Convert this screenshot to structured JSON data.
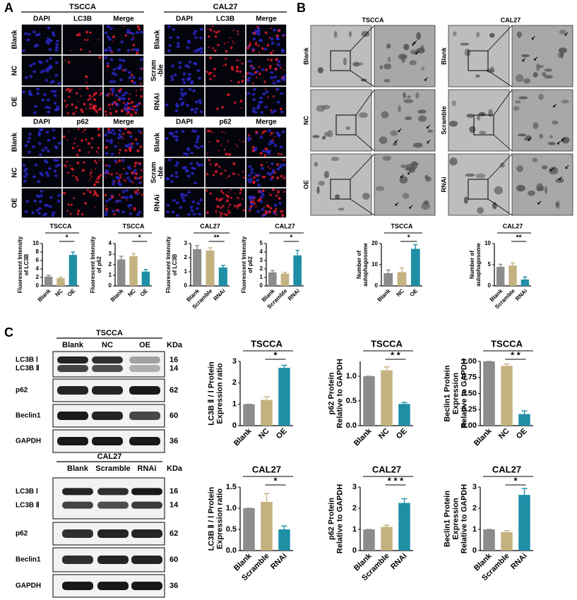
{
  "panel_labels": [
    "A",
    "B",
    "C"
  ],
  "fluorescence": [
    {
      "cell_line": "TSCCA",
      "columns": [
        "DAPI",
        "LC3B",
        "Merge"
      ],
      "rows": [
        "Blank",
        "NC",
        "OE"
      ]
    },
    {
      "columns": [
        "DAPI",
        "p62",
        "Merge"
      ],
      "rows": [
        "Blank",
        "NC",
        "OE"
      ]
    },
    {
      "cell_line": "CAL27",
      "columns": [
        "DAPI",
        "LC3B",
        "Merge"
      ],
      "rows": [
        "Blank",
        [
          "Scram",
          "-ble"
        ],
        "RNAi"
      ]
    },
    {
      "columns": [
        "DAPI",
        "p62",
        "Merge"
      ],
      "rows": [
        "Blank",
        [
          "Scram",
          "-ble"
        ],
        "RNAi"
      ]
    }
  ],
  "tem": [
    {
      "cell_line": "TSCCA",
      "rows": [
        "Blank",
        "NC",
        "OE"
      ]
    },
    {
      "cell_line": "CAL27",
      "rows": [
        "Blank",
        "Scramble",
        "RNAi"
      ]
    }
  ],
  "blots": [
    {
      "cell_line": "TSCCA",
      "lanes": [
        "Blank",
        "NC",
        "OE"
      ],
      "unit": "KDa",
      "strips": [
        {
          "labels": [
            "LC3B Ⅰ",
            "LC3B Ⅱ"
          ],
          "kda": [
            16,
            14
          ]
        },
        {
          "labels": [
            "p62"
          ],
          "kda": [
            62
          ]
        },
        {
          "labels": [
            "Beclin1"
          ],
          "kda": [
            60
          ]
        },
        {
          "labels": [
            "GAPDH"
          ],
          "kda": [
            36
          ]
        }
      ]
    },
    {
      "cell_line": "CAL27",
      "lanes": [
        "Blank",
        "Scramble",
        "RNAi"
      ],
      "unit": "KDa",
      "strips": [
        {
          "labels": [
            "LC3B Ⅰ",
            "LC3B Ⅱ"
          ],
          "kda": [
            16,
            14
          ]
        },
        {
          "labels": [
            "p62"
          ],
          "kda": [
            62
          ]
        },
        {
          "labels": [
            "Beclin1"
          ],
          "kda": [
            60
          ]
        },
        {
          "labels": [
            "GAPDH"
          ],
          "kda": [
            36
          ]
        }
      ]
    }
  ],
  "chart_data": [
    {
      "type": "bar",
      "title": "TSCCA",
      "y_label": [
        "Fluorescent Intensity",
        "of LC3B"
      ],
      "categories": [
        "Blank",
        "NC",
        "OE"
      ],
      "values": [
        2.2,
        1.8,
        7.3
      ],
      "errors": [
        0.3,
        0.2,
        0.7
      ],
      "colors": [
        "#8c8c8c",
        "#c4b280",
        "#1f8fa6"
      ],
      "ylim": [
        0,
        10
      ],
      "yticks": [
        0,
        2,
        4,
        6,
        8,
        10
      ],
      "significance": "*"
    },
    {
      "type": "bar",
      "title": "TSCCA",
      "y_label": [
        "Fluorescent Intensity",
        "of p62"
      ],
      "categories": [
        "Blank",
        "NC",
        "OE"
      ],
      "values": [
        2.5,
        2.8,
        1.35
      ],
      "errors": [
        0.3,
        0.25,
        0.2
      ],
      "colors": [
        "#8c8c8c",
        "#c4b280",
        "#1f8fa6"
      ],
      "ylim": [
        0,
        4
      ],
      "yticks": [
        0,
        1,
        2,
        3,
        4
      ],
      "significance": "*"
    },
    {
      "type": "bar",
      "title": "CAL27",
      "y_label": [
        "Fluorescent Intensity",
        "of LC3B"
      ],
      "categories": [
        "Blank",
        "Scramble",
        "RNAi"
      ],
      "values": [
        2.6,
        2.5,
        1.3
      ],
      "errors": [
        0.25,
        0.2,
        0.15
      ],
      "colors": [
        "#8c8c8c",
        "#c4b280",
        "#1f8fa6"
      ],
      "ylim": [
        0,
        3
      ],
      "yticks": [
        0,
        1,
        2,
        3
      ],
      "significance": "**"
    },
    {
      "type": "bar",
      "title": "CAL27",
      "y_label": [
        "Fluorescent Intensity",
        "of p62"
      ],
      "categories": [
        "Blank",
        "Scramble",
        "RNAi"
      ],
      "values": [
        1.6,
        1.45,
        3.6
      ],
      "errors": [
        0.2,
        0.15,
        0.6
      ],
      "colors": [
        "#8c8c8c",
        "#c4b280",
        "#1f8fa6"
      ],
      "ylim": [
        0,
        5
      ],
      "yticks": [
        0,
        1,
        2,
        3,
        4,
        5
      ],
      "significance": "*"
    },
    {
      "type": "bar",
      "title": "TSCCA",
      "y_label": [
        "Number of",
        "autophagosome"
      ],
      "categories": [
        "Blank",
        "NC",
        "OE"
      ],
      "values": [
        6,
        6.5,
        17.5
      ],
      "errors": [
        1.5,
        2,
        2
      ],
      "colors": [
        "#8c8c8c",
        "#c4b280",
        "#1f8fa6"
      ],
      "ylim": [
        0,
        20
      ],
      "yticks": [
        0,
        10,
        20
      ],
      "significance": "*"
    },
    {
      "type": "bar",
      "title": "CAL27",
      "y_label": [
        "Number of",
        "autophagosome"
      ],
      "categories": [
        "Blank",
        "Scramble",
        "RNAi"
      ],
      "values": [
        4.5,
        4.8,
        1.5
      ],
      "errors": [
        0.6,
        0.6,
        0.6
      ],
      "colors": [
        "#8c8c8c",
        "#c4b280",
        "#1f8fa6"
      ],
      "ylim": [
        0,
        10
      ],
      "yticks": [
        0,
        5,
        10
      ],
      "significance": "**"
    },
    {
      "type": "bar",
      "title": "TSCCA",
      "y_label": [
        "LC3B Ⅱ / Ⅰ Protein",
        "Expression ratio"
      ],
      "categories": [
        "Blank",
        "NC",
        "OE"
      ],
      "values": [
        1.0,
        1.2,
        2.7
      ],
      "errors": [
        0,
        0.15,
        0.12
      ],
      "colors": [
        "#8c8c8c",
        "#c4b280",
        "#1f8fa6"
      ],
      "ylim": [
        0,
        3
      ],
      "yticks": [
        0,
        1,
        2,
        3
      ],
      "significance": "*"
    },
    {
      "type": "bar",
      "title": "TSCCA",
      "y_label": [
        "p62 Protein",
        "Relative to GAPDH"
      ],
      "categories": [
        "Blank",
        "NC",
        "OE"
      ],
      "values": [
        1.0,
        1.12,
        0.44
      ],
      "errors": [
        0,
        0.07,
        0.03
      ],
      "colors": [
        "#8c8c8c",
        "#c4b280",
        "#1f8fa6"
      ],
      "ylim": [
        0,
        1.3
      ],
      "yticks": [
        {
          "value": 0,
          "label": "0.0"
        },
        {
          "value": 0.5,
          "label": "0.5"
        },
        {
          "value": 1,
          "label": "1.0"
        }
      ],
      "significance": "* *"
    },
    {
      "type": "bar",
      "title": "TSCCA",
      "y_label": [
        "Beclin1 Protein",
        "Expression",
        "Relative to GAPDH"
      ],
      "categories": [
        "Blank",
        "NC",
        "OE"
      ],
      "values": [
        1.0,
        0.93,
        0.18
      ],
      "errors": [
        0,
        0.03,
        0.05
      ],
      "colors": [
        "#8c8c8c",
        "#c4b280",
        "#1f8fa6"
      ],
      "ylim": [
        0,
        1
      ],
      "yticks": [
        {
          "value": 0,
          "label": "0.00"
        },
        {
          "value": 0.25,
          "label": "0.25"
        },
        {
          "value": 0.5,
          "label": "0.50"
        },
        {
          "value": 0.75,
          "label": "0.75"
        },
        {
          "value": 1,
          "label": "1.00"
        }
      ],
      "significance": "* *"
    },
    {
      "type": "bar",
      "title": "CAL27",
      "y_label": [
        "LC3B Ⅱ / Ⅰ Protein",
        "Expression ratio"
      ],
      "categories": [
        "Blank",
        "Scramble",
        "RNAi"
      ],
      "values": [
        1.0,
        1.15,
        0.5
      ],
      "errors": [
        0,
        0.2,
        0.08
      ],
      "colors": [
        "#8c8c8c",
        "#c4b280",
        "#1f8fa6"
      ],
      "ylim": [
        0,
        1.5
      ],
      "yticks": [
        {
          "value": 0,
          "label": "0.0"
        },
        {
          "value": 0.5,
          "label": "0.5"
        },
        {
          "value": 1,
          "label": "1.0"
        },
        {
          "value": 1.5,
          "label": "1.5"
        }
      ],
      "significance": "*"
    },
    {
      "type": "bar",
      "title": "CAL27",
      "y_label": [
        "p62 Protein",
        "Relative to GAPDH"
      ],
      "categories": [
        "Blank",
        "Scramble",
        "RNAi"
      ],
      "values": [
        1.0,
        1.12,
        2.25
      ],
      "errors": [
        0,
        0.08,
        0.2
      ],
      "colors": [
        "#8c8c8c",
        "#c4b280",
        "#1f8fa6"
      ],
      "ylim": [
        0,
        3
      ],
      "yticks": [
        0,
        1,
        2,
        3
      ],
      "significance": "* * *"
    },
    {
      "type": "bar",
      "title": "CAL27",
      "y_label": [
        "Beclin1 Protein",
        "Expression",
        "Relative to GAPDH"
      ],
      "categories": [
        "Blank",
        "Scramble",
        "RNAi"
      ],
      "values": [
        1.0,
        0.87,
        2.63
      ],
      "errors": [
        0,
        0.07,
        0.3
      ],
      "colors": [
        "#8c8c8c",
        "#c4b280",
        "#1f8fa6"
      ],
      "ylim": [
        0,
        3
      ],
      "yticks": [
        0,
        1,
        2,
        3
      ],
      "significance": "*"
    }
  ]
}
